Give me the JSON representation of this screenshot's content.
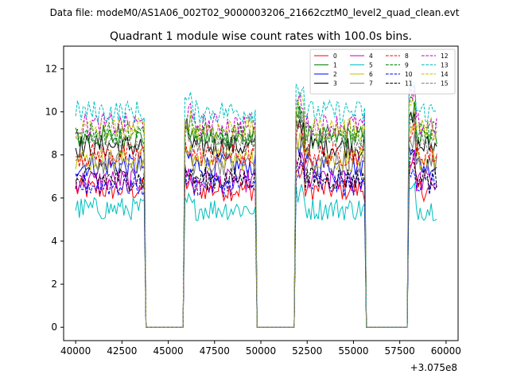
{
  "figure": {
    "suptitle": "Data file: modeM0/AS1A06_002T02_9000003206_21662cztM0_level2_quad_clean.evt"
  },
  "chart_data": {
    "type": "line",
    "title": "Quadrant 1 module wise count rates with 100.0s bins.",
    "xlabel": "",
    "ylabel": "",
    "x_offset_label": "+3.075e8",
    "xlim": [
      39350,
      60650
    ],
    "ylim": [
      -0.62,
      13.05
    ],
    "x_ticks": [
      40000,
      42500,
      45000,
      47500,
      50000,
      52500,
      55000,
      57500,
      60000
    ],
    "x_tick_labels": [
      "40000",
      "42500",
      "45000",
      "47500",
      "50000",
      "52500",
      "55000",
      "57500",
      "60000"
    ],
    "y_ticks": [
      0,
      2,
      4,
      6,
      8,
      10,
      12
    ],
    "y_tick_labels": [
      "0",
      "2",
      "4",
      "6",
      "8",
      "10",
      "12"
    ],
    "legend_position": "upper-right",
    "legend_columns": 4,
    "bin_size_s": 100,
    "on_segments": [
      [
        40000,
        43700
      ],
      [
        45900,
        49700
      ],
      [
        51900,
        55600
      ],
      [
        58000,
        59500
      ]
    ],
    "off_segments": [
      [
        44000,
        45800
      ],
      [
        50000,
        51800
      ],
      [
        55900,
        57800
      ]
    ],
    "series": [
      {
        "name": "0",
        "color": "#ff0000",
        "dash": "solid",
        "level": 6.4
      },
      {
        "name": "1",
        "color": "#008000",
        "dash": "solid",
        "level": 8.8
      },
      {
        "name": "2",
        "color": "#0000ff",
        "dash": "solid",
        "level": 7.5
      },
      {
        "name": "3",
        "color": "#000000",
        "dash": "solid",
        "level": 8.4
      },
      {
        "name": "4",
        "color": "#bf00bf",
        "dash": "solid",
        "level": 6.8
      },
      {
        "name": "5",
        "color": "#00bfbf",
        "dash": "solid",
        "level": 5.5
      },
      {
        "name": "6",
        "color": "#bfbf00",
        "dash": "solid",
        "level": 7.8
      },
      {
        "name": "7",
        "color": "#808080",
        "dash": "solid",
        "level": 7.6
      },
      {
        "name": "8",
        "color": "#ff0000",
        "dash": "dashed",
        "level": 8.0
      },
      {
        "name": "9",
        "color": "#008000",
        "dash": "dashed",
        "level": 9.0
      },
      {
        "name": "10",
        "color": "#0000ff",
        "dash": "dashed",
        "level": 6.6
      },
      {
        "name": "11",
        "color": "#000000",
        "dash": "dashed",
        "level": 6.9
      },
      {
        "name": "12",
        "color": "#bf00bf",
        "dash": "dashed",
        "level": 9.4
      },
      {
        "name": "13",
        "color": "#00bfbf",
        "dash": "dashed",
        "level": 10.0
      },
      {
        "name": "14",
        "color": "#bfbf00",
        "dash": "dashed",
        "level": 9.2
      },
      {
        "name": "15",
        "color": "#808080",
        "dash": "dashed",
        "level": 8.6
      }
    ]
  }
}
